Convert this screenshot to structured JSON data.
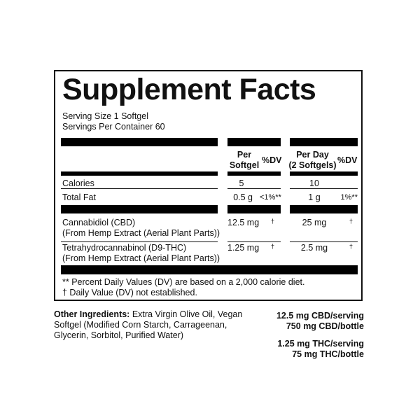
{
  "title": "Supplement Facts",
  "serving_size": "Serving Size 1 Softgel",
  "servings_per_container": "Servings Per Container 60",
  "headers": {
    "per_softgel": [
      "Per",
      "Softgel"
    ],
    "dv1": "%DV",
    "per_day": [
      "Per Day",
      "(2 Softgels)"
    ],
    "dv2": "%DV"
  },
  "rows": [
    {
      "name": "Calories",
      "sub": "",
      "per": "5",
      "dv1": "",
      "day": "10",
      "dv2": ""
    },
    {
      "name": "Total Fat",
      "sub": "",
      "per": "0.5 g",
      "dv1": "<1%**",
      "day": "1 g",
      "dv2": "1%**"
    },
    {
      "name": "Cannabidiol (CBD)",
      "sub": "(From Hemp Extract (Aerial Plant Parts))",
      "per": "12.5 mg",
      "dv1": "†",
      "day": "25 mg",
      "dv2": "†"
    },
    {
      "name": "Tetrahydrocannabinol (D9-THC)",
      "sub": "(From Hemp Extract (Aerial Plant Parts))",
      "per": "1.25 mg",
      "dv1": "†",
      "day": "2.5 mg",
      "dv2": "†"
    }
  ],
  "footnotes": [
    "** Percent Daily Values (DV) are based on a 2,000 calorie diet.",
    "† Daily Value (DV) not established."
  ],
  "other_ingredients": {
    "label": "Other Ingredients:",
    "text": " Extra Virgin Olive Oil, Vegan Softgel (Modified Corn Starch, Carrageenan, Glycerin, Sorbitol, Purified Water)"
  },
  "potency": [
    "12.5 mg CBD/serving",
    "750 mg CBD/bottle",
    "1.25 mg THC/serving",
    "75 mg THC/bottle"
  ]
}
